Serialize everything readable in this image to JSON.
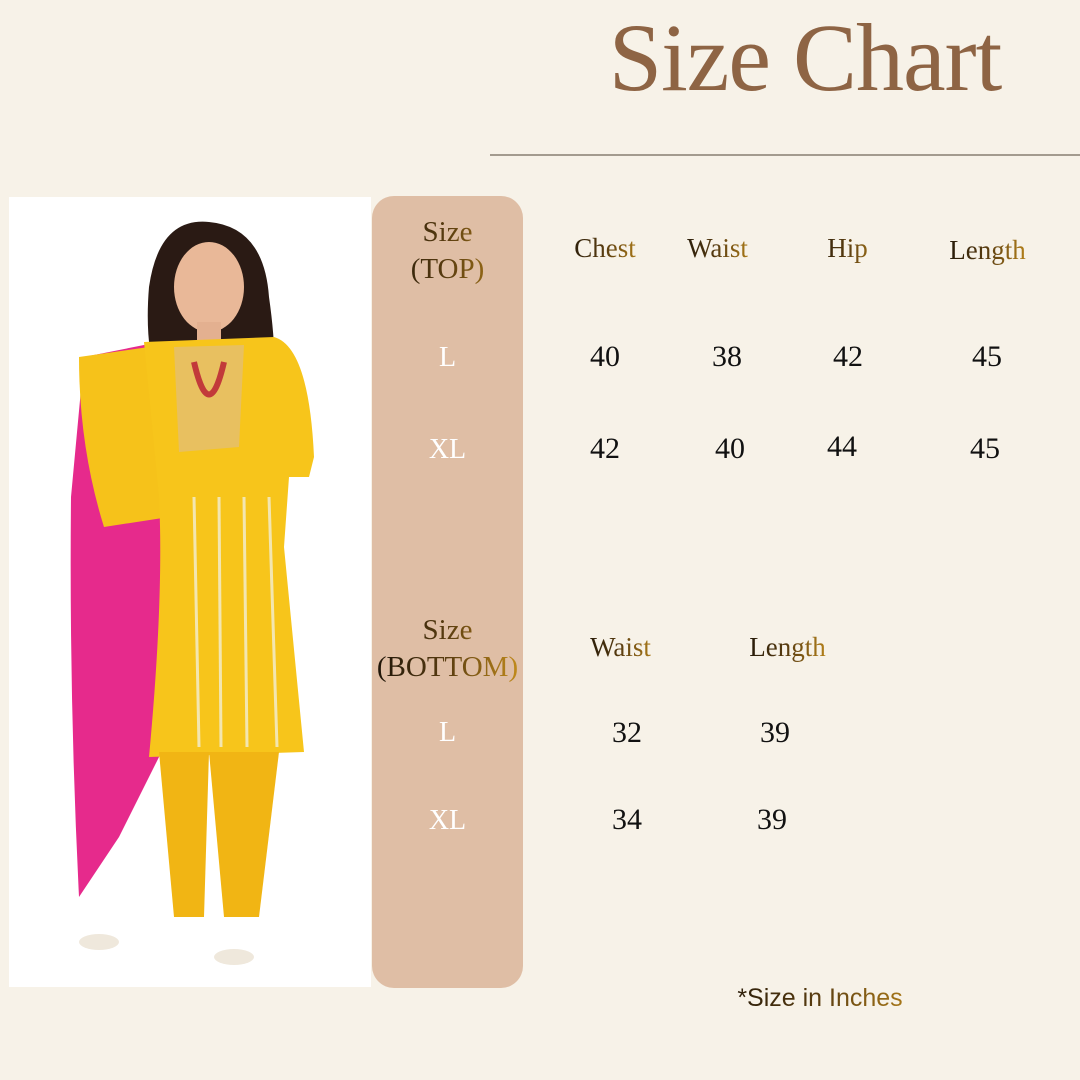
{
  "title": "Size Chart",
  "top": {
    "label_line1": "Size",
    "label_line2": "(TOP)",
    "columns": [
      "Chest",
      "Waist",
      "Hip",
      "Length"
    ],
    "rows": [
      {
        "size": "L",
        "values": [
          "40",
          "38",
          "42",
          "45"
        ]
      },
      {
        "size": "XL",
        "values": [
          "42",
          "40",
          "44",
          "45"
        ]
      }
    ]
  },
  "bottom": {
    "label_line1": "Size",
    "label_line2": "(BOTTOM)",
    "columns": [
      "Waist",
      "Length"
    ],
    "rows": [
      {
        "size": "L",
        "values": [
          "32",
          "39"
        ]
      },
      {
        "size": "XL",
        "values": [
          "34",
          "39"
        ]
      }
    ]
  },
  "note": "*Size in Inches",
  "colors": {
    "background": "#f7f2e8",
    "title": "#8e6444",
    "band": "#dfbea5",
    "gold": "#c8901c"
  },
  "photo": {
    "subject": "woman in yellow kurta set with pink-yellow dupatta"
  }
}
